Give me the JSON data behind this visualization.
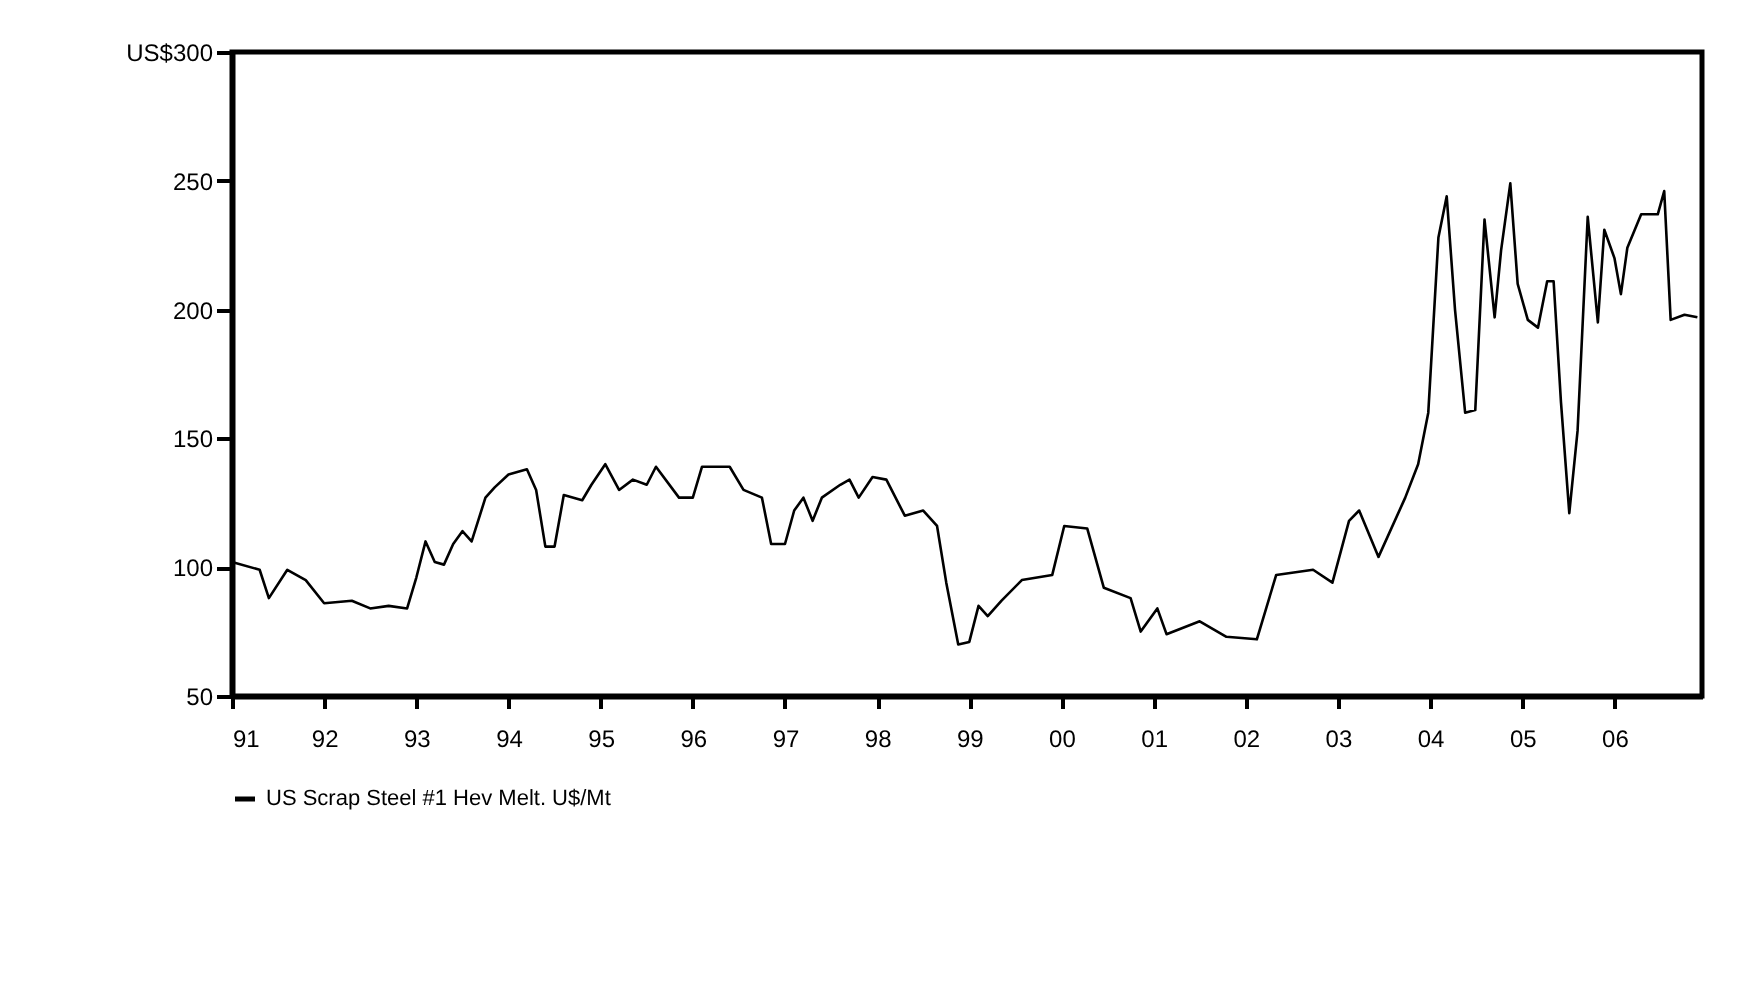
{
  "chart_data": {
    "type": "line",
    "x": [
      1991.0,
      1991.3,
      1991.4,
      1991.6,
      1991.8,
      1992.0,
      1992.3,
      1992.5,
      1992.7,
      1992.9,
      1993.0,
      1993.1,
      1993.2,
      1993.3,
      1993.4,
      1993.5,
      1993.6,
      1993.75,
      1993.85,
      1994.0,
      1994.2,
      1994.3,
      1994.4,
      1994.5,
      1994.6,
      1994.8,
      1994.9,
      1995.05,
      1995.2,
      1995.35,
      1995.5,
      1995.6,
      1995.85,
      1996.0,
      1996.1,
      1996.4,
      1996.55,
      1996.75,
      1996.85,
      1997.0,
      1997.1,
      1997.2,
      1997.3,
      1997.4,
      1997.6,
      1997.7,
      1997.8,
      1997.95,
      1998.1,
      1998.3,
      1998.5,
      1998.65,
      1998.75,
      1998.88,
      1999.0,
      1999.1,
      1999.2,
      1999.35,
      1999.57,
      1999.9,
      2000.03,
      2000.28,
      2000.46,
      2000.75,
      2000.86,
      2001.04,
      2001.14,
      2001.5,
      2001.79,
      2002.12,
      2002.33,
      2002.73,
      2002.94,
      2003.12,
      2003.23,
      2003.44,
      2003.73,
      2003.87,
      2003.98,
      2004.09,
      2004.18,
      2004.27,
      2004.38,
      2004.49,
      2004.59,
      2004.7,
      2004.77,
      2004.87,
      2004.95,
      2005.06,
      2005.17,
      2005.27,
      2005.34,
      2005.42,
      2005.51,
      2005.6,
      2005.71,
      2005.82,
      2005.89,
      2006.0,
      2006.07,
      2006.14,
      2006.29,
      2006.47,
      2006.54,
      2006.61,
      2006.76,
      2006.9
    ],
    "series": [
      {
        "name": "US Scrap Steel #1 Hev Melt. U$/Mt",
        "color": "#000000",
        "values": [
          102,
          99,
          88,
          99,
          95,
          86,
          87,
          84,
          85,
          84,
          96,
          110,
          102,
          101,
          109,
          114,
          110,
          127,
          131,
          136,
          138,
          130,
          108,
          108,
          128,
          126,
          132,
          140,
          130,
          134,
          132,
          139,
          127,
          127,
          139,
          139,
          130,
          127,
          109,
          109,
          122,
          127,
          118,
          127,
          132,
          134,
          127,
          135,
          134,
          120,
          122,
          116,
          94,
          70,
          71,
          85,
          81,
          87,
          95,
          97,
          116,
          115,
          92,
          88,
          75,
          84,
          74,
          79,
          73,
          72,
          97,
          99,
          94,
          118,
          122,
          104,
          127,
          140,
          160,
          228,
          244,
          200,
          160,
          161,
          235,
          197,
          223,
          249,
          210,
          196,
          193,
          211,
          211,
          164,
          121,
          153,
          236,
          195,
          231,
          220,
          206,
          224,
          237,
          237,
          246,
          196,
          198,
          197
        ]
      }
    ],
    "xlim": [
      1991,
      2006.95
    ],
    "xticks": [
      {
        "value": 1991,
        "label": "91"
      },
      {
        "value": 1992,
        "label": "92"
      },
      {
        "value": 1993,
        "label": "93"
      },
      {
        "value": 1994,
        "label": "94"
      },
      {
        "value": 1995,
        "label": "95"
      },
      {
        "value": 1996,
        "label": "96"
      },
      {
        "value": 1997,
        "label": "97"
      },
      {
        "value": 1998,
        "label": "98"
      },
      {
        "value": 1999,
        "label": "99"
      },
      {
        "value": 2000,
        "label": "00"
      },
      {
        "value": 2001,
        "label": "01"
      },
      {
        "value": 2002,
        "label": "02"
      },
      {
        "value": 2003,
        "label": "03"
      },
      {
        "value": 2004,
        "label": "04"
      },
      {
        "value": 2005,
        "label": "05"
      },
      {
        "value": 2006,
        "label": "06"
      }
    ],
    "ylim": [
      50,
      300
    ],
    "yticks": [
      50,
      100,
      150,
      200,
      250,
      {
        "value": 300,
        "label": "US$300"
      }
    ],
    "legend": "bottom"
  }
}
